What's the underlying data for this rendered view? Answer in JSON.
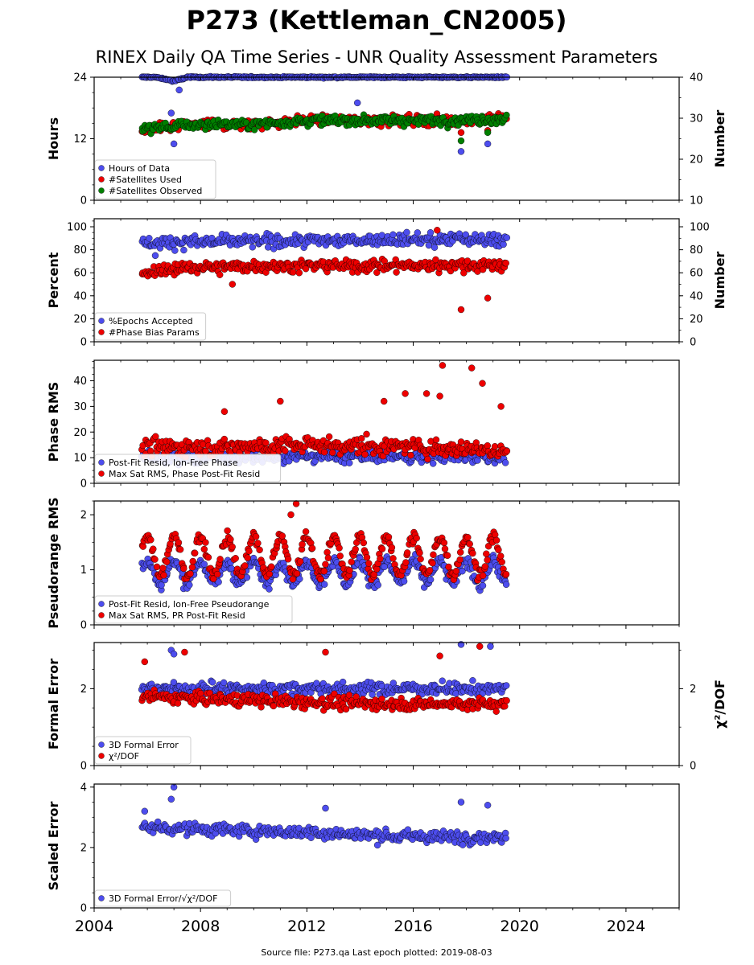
{
  "figure": {
    "title": "P273 (Kettleman_CN2005)",
    "subtitle": "RINEX Daily QA Time Series - UNR Quality Assessment Parameters",
    "footer": "Source file: P273.qa Last epoch plotted: 2019-08-03",
    "x_ticks": [
      "2004",
      "2008",
      "2012",
      "2016",
      "2020",
      "2024"
    ]
  },
  "colors": {
    "blue": "#4d4dee",
    "red": "#ee0000",
    "green": "#007f00"
  },
  "chart_data": [
    {
      "type": "scatter",
      "ylabel": "Hours",
      "ylabel_right": "Number",
      "ylim": [
        0,
        24
      ],
      "ylim_right": [
        10,
        40
      ],
      "yticks": [
        "0",
        "12",
        "24"
      ],
      "yticks_right": [
        "10",
        "20",
        "30",
        "40"
      ],
      "xlim": [
        2004,
        2026
      ],
      "legend": [
        "Hours of Data",
        "#Satellites Used",
        "#Satellites Observed"
      ],
      "legend_position": "lower-left",
      "series": [
        {
          "name": "Hours of Data",
          "x": [
            2005.8,
            2006.3,
            2006.8,
            2007.0,
            2007.5,
            2008.5,
            2010.0,
            2012.0,
            2014.0,
            2016.0,
            2018.0,
            2019.5
          ],
          "y": [
            24,
            24,
            23.5,
            23.2,
            24,
            24,
            24,
            24,
            24,
            24,
            24,
            24
          ],
          "outliers": [
            [
              2006.9,
              17
            ],
            [
              2006.95,
              15
            ],
            [
              2007.0,
              11
            ],
            [
              2007.2,
              21.5
            ],
            [
              2013.9,
              19
            ],
            [
              2017.8,
              9.5
            ],
            [
              2018.8,
              11
            ]
          ]
        },
        {
          "name": "#Satellites Used",
          "x": [
            2005.8,
            2007,
            2008,
            2010,
            2012,
            2014,
            2016,
            2018,
            2019.5
          ],
          "y": [
            27,
            28,
            28.5,
            28.5,
            29.5,
            29.5,
            29.5,
            29.5,
            30
          ],
          "outliers": [
            [
              2017.8,
              26.5
            ],
            [
              2018.8,
              27
            ]
          ]
        },
        {
          "name": "#Satellites Observed",
          "x": [
            2005.8,
            2007,
            2008,
            2010,
            2012,
            2014,
            2016,
            2018,
            2019.5
          ],
          "y": [
            27.5,
            28,
            28.5,
            28.5,
            29.5,
            29.5,
            29.5,
            29.5,
            30
          ],
          "outliers": [
            [
              2017.8,
              24.5
            ],
            [
              2018.8,
              26.5
            ]
          ]
        }
      ]
    },
    {
      "type": "scatter",
      "ylabel": "Percent",
      "ylabel_right": "Number",
      "ylim": [
        0,
        107
      ],
      "ylim_right": [
        0,
        107
      ],
      "yticks": [
        "0",
        "20",
        "40",
        "60",
        "80",
        "100"
      ],
      "yticks_right": [
        "0",
        "20",
        "40",
        "60",
        "80",
        "100"
      ],
      "xlim": [
        2004,
        2026
      ],
      "legend": [
        "%Epochs Accepted",
        "#Phase Bias Params"
      ],
      "legend_position": "lower-left",
      "series": [
        {
          "name": "%Epochs Accepted",
          "x": [
            2005.8,
            2008,
            2012,
            2016,
            2019.5
          ],
          "y": [
            86,
            87,
            88,
            89,
            89
          ],
          "outliers": [
            [
              2006.3,
              75
            ],
            [
              2016.8,
              82
            ]
          ]
        },
        {
          "name": "#Phase Bias Params",
          "x": [
            2005.8,
            2007,
            2010,
            2014,
            2019.5
          ],
          "y": [
            58,
            64,
            66,
            66,
            67
          ],
          "outliers": [
            [
              2016.9,
              97
            ],
            [
              2017.8,
              28
            ],
            [
              2018.8,
              38
            ],
            [
              2009.2,
              50
            ]
          ]
        }
      ]
    },
    {
      "type": "scatter",
      "ylabel": "Phase RMS",
      "ylim": [
        0,
        48
      ],
      "yticks": [
        "0",
        "10",
        "20",
        "30",
        "40"
      ],
      "xlim": [
        2004,
        2026
      ],
      "legend": [
        "Post-Fit Resid, Ion-Free Phase",
        "Max Sat RMS, Phase Post-Fit Resid"
      ],
      "legend_position": "lower-left",
      "series": [
        {
          "name": "Post-Fit Resid, Ion-Free Phase",
          "x": [
            2005.8,
            2010,
            2014,
            2019.5
          ],
          "y": [
            10,
            10.5,
            10.5,
            10.5
          ],
          "outliers": []
        },
        {
          "name": "Max Sat RMS, Phase Post-Fit Resid",
          "x": [
            2005.8,
            2008,
            2012,
            2016,
            2019.5
          ],
          "y": [
            14,
            14,
            15,
            14,
            13
          ],
          "outliers": [
            [
              2017.1,
              46
            ],
            [
              2018.2,
              45
            ],
            [
              2018.6,
              39
            ],
            [
              2019.3,
              30
            ],
            [
              2015.7,
              35
            ],
            [
              2016.5,
              35
            ],
            [
              2017.0,
              34
            ],
            [
              2014.9,
              32
            ],
            [
              2011.0,
              32
            ],
            [
              2008.9,
              28
            ]
          ]
        }
      ]
    },
    {
      "type": "scatter",
      "ylabel": "Pseudorange RMS",
      "ylim": [
        0,
        2.25
      ],
      "yticks": [
        "0",
        "1",
        "2"
      ],
      "xlim": [
        2004,
        2026
      ],
      "legend": [
        "Post-Fit Resid, Ion-Free Pseudorange",
        "Max Sat RMS, PR Post-Fit Resid"
      ],
      "legend_position": "lower-left",
      "series": [
        {
          "name": "Post-Fit Resid, Ion-Free Pseudorange",
          "x": [
            2005.8,
            2019.5
          ],
          "y": [
            0.95,
            0.95
          ],
          "amplitude": 0.2,
          "outliers": []
        },
        {
          "name": "Max Sat RMS, PR Post-Fit Resid",
          "x": [
            2005.8,
            2019.5
          ],
          "y": [
            1.25,
            1.25
          ],
          "amplitude": 0.35,
          "outliers": [
            [
              2011.6,
              2.2
            ],
            [
              2011.4,
              2.0
            ]
          ]
        }
      ]
    },
    {
      "type": "scatter",
      "ylabel": "Formal Error",
      "ylabel_right": "χ²/DOF",
      "ylim": [
        0,
        3.2
      ],
      "ylim_right": [
        0,
        3.2
      ],
      "yticks": [
        "0",
        "2"
      ],
      "yticks_right": [
        "0",
        "2"
      ],
      "xlim": [
        2004,
        2026
      ],
      "legend": [
        "3D Formal Error",
        "χ²/DOF"
      ],
      "legend_position": "lower-left",
      "series": [
        {
          "name": "3D Formal Error",
          "x": [
            2005.8,
            2010,
            2014,
            2019.5
          ],
          "y": [
            2.0,
            2.0,
            2.0,
            2.0
          ],
          "outliers": [
            [
              2006.9,
              3.0
            ],
            [
              2007.0,
              2.9
            ],
            [
              2017.8,
              3.15
            ],
            [
              2018.9,
              3.1
            ]
          ]
        },
        {
          "name": "χ²/DOF",
          "x": [
            2005.8,
            2008,
            2012,
            2016,
            2019.5
          ],
          "y": [
            1.8,
            1.75,
            1.65,
            1.6,
            1.6
          ],
          "outliers": [
            [
              2007.4,
              2.95
            ],
            [
              2012.7,
              2.95
            ],
            [
              2017.0,
              2.85
            ],
            [
              2018.5,
              3.1
            ],
            [
              2005.9,
              2.7
            ]
          ]
        }
      ]
    },
    {
      "type": "scatter",
      "ylabel": "Scaled Error",
      "ylim": [
        0,
        4.1
      ],
      "yticks": [
        "0",
        "2",
        "4"
      ],
      "xlim": [
        2004,
        2026
      ],
      "legend": [
        "3D Formal Error/√χ²/DOF"
      ],
      "legend_position": "lower-left",
      "series": [
        {
          "name": "3D Formal Error/√χ²/DOF",
          "x": [
            2005.8,
            2008,
            2012,
            2016,
            2019.5
          ],
          "y": [
            2.7,
            2.6,
            2.5,
            2.35,
            2.35
          ],
          "outliers": [
            [
              2007.0,
              4.0
            ],
            [
              2006.9,
              3.6
            ],
            [
              2017.8,
              3.5
            ],
            [
              2018.8,
              3.4
            ],
            [
              2012.7,
              3.3
            ],
            [
              2005.9,
              3.2
            ]
          ]
        }
      ]
    }
  ]
}
